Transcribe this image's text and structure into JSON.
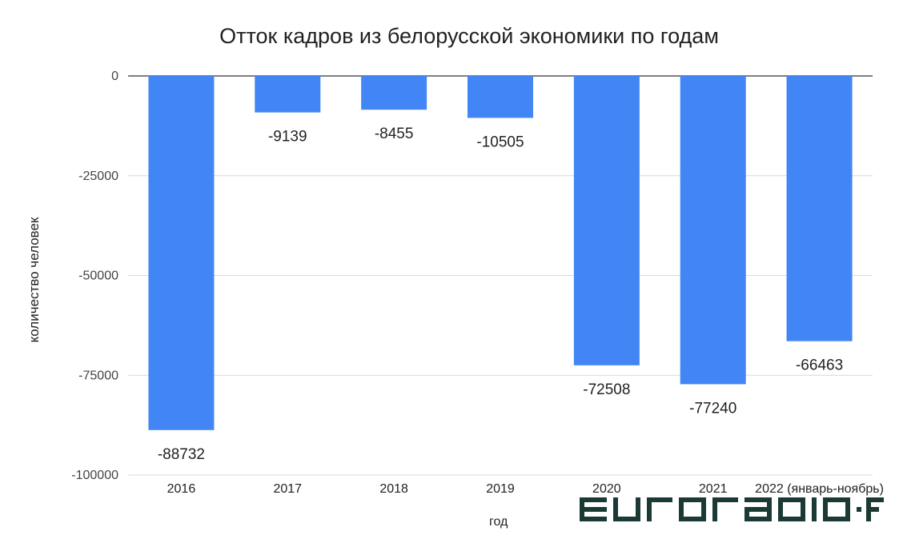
{
  "chart_data": {
    "type": "bar",
    "title": "Отток кадров из белорусской экономики по годам",
    "xlabel": "год",
    "ylabel": "количество человек",
    "categories": [
      "2016",
      "2017",
      "2018",
      "2019",
      "2020",
      "2021",
      "2022 (январь-ноябрь)"
    ],
    "values": [
      -88732,
      -9139,
      -8455,
      -10505,
      -72508,
      -77240,
      -66463
    ],
    "data_labels": [
      "-88732",
      "-9139",
      "-8455",
      "-10505",
      "-72508",
      "-77240",
      "-66463"
    ],
    "ylim": [
      -100000,
      0
    ],
    "yticks": [
      0,
      -25000,
      -50000,
      -75000,
      -100000
    ],
    "ytick_labels": [
      "0",
      "-25000",
      "-50000",
      "-75000",
      "-100000"
    ],
    "bar_color": "#4285f4",
    "grid": true,
    "legend": "none"
  },
  "watermark": {
    "text": "euroradio.fm"
  },
  "colors": {
    "watermark": "#1c3a35"
  }
}
